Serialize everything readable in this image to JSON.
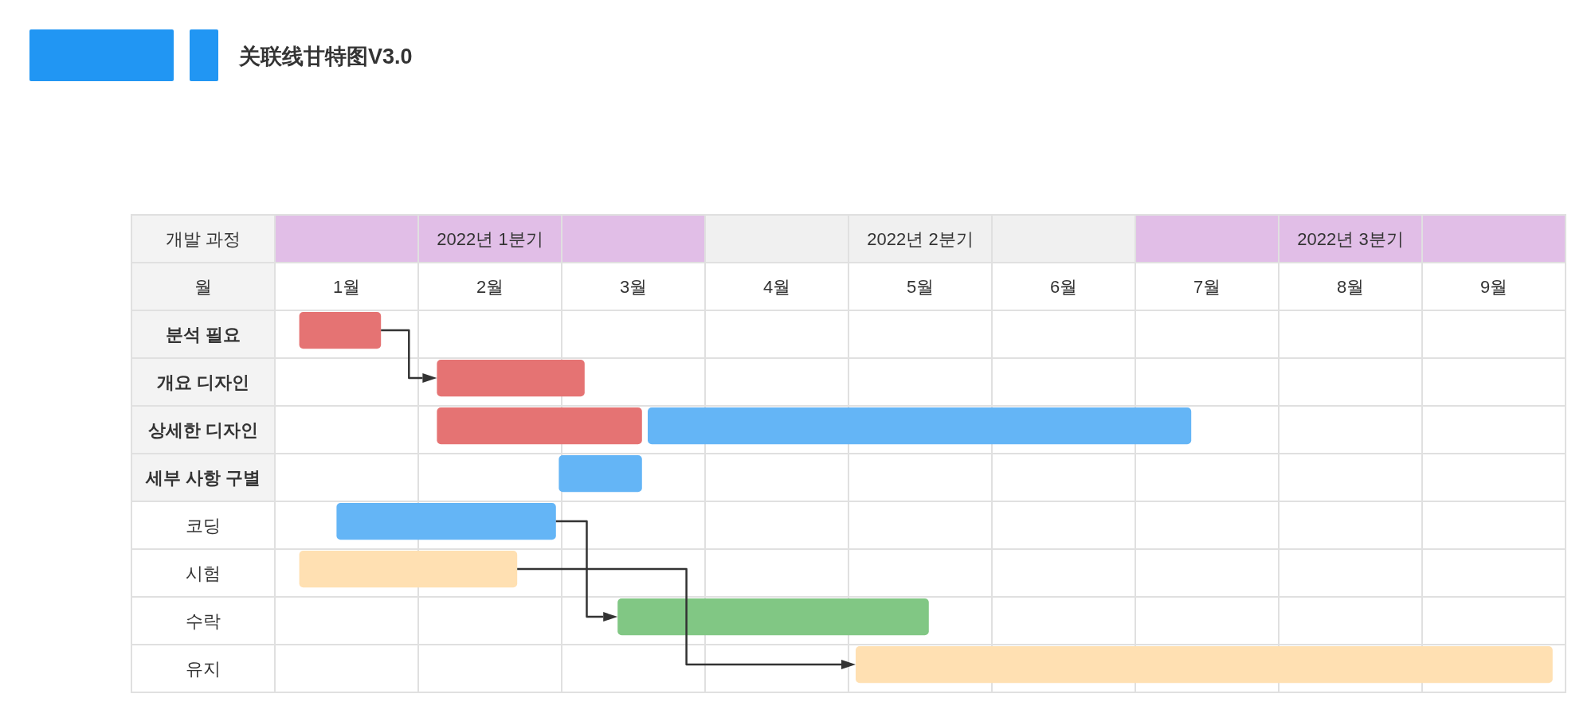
{
  "chart_data": {
    "type": "bar",
    "orientation": "horizontal",
    "title": "关联线甘特图V3.0",
    "xlabel": "월",
    "ylabel": "개발 과정",
    "categories": [
      "분석 필요",
      "개요 디자인",
      "상세한 디자인",
      "세부 사항 구별",
      "코딩",
      "시험",
      "수락",
      "유지"
    ],
    "series": [
      {
        "colors": [
          "#e57373",
          "#e57373",
          "#e57373",
          "#64b5f6",
          "#64b5f6",
          "#ffe0b2",
          "#81c784",
          "#ffe0b2"
        ],
        "base": [
          0.17,
          1.13,
          1.13,
          1.98,
          0.43,
          0.17,
          2.39,
          4.05
        ],
        "values": [
          0.57,
          1.03,
          1.43,
          0.58,
          1.53,
          1.52,
          2.17,
          4.86
        ]
      },
      {
        "colors": [
          null,
          null,
          "#64b5f6",
          null,
          null,
          null,
          null,
          null
        ],
        "base": [
          null,
          null,
          2.6,
          null,
          null,
          null,
          null,
          null
        ],
        "values": [
          null,
          null,
          3.79,
          null,
          null,
          null,
          null,
          null
        ]
      }
    ],
    "xlim": [
      0,
      9
    ],
    "xticks": [
      {
        "value": 0,
        "label": null
      },
      {
        "value": 0.5,
        "label": "1월"
      },
      {
        "value": 1,
        "label": null
      },
      {
        "value": 1.5,
        "label": "2월"
      },
      {
        "value": 2,
        "label": null
      },
      {
        "value": 2.5,
        "label": "3월"
      },
      {
        "value": 3,
        "label": null
      },
      {
        "value": 3.5,
        "label": "4월"
      },
      {
        "value": 4,
        "label": null
      },
      {
        "value": 4.5,
        "label": "5월"
      },
      {
        "value": 5,
        "label": null
      },
      {
        "value": 5.5,
        "label": "6월"
      },
      {
        "value": 6,
        "label": null
      },
      {
        "value": 6.5,
        "label": "7월"
      },
      {
        "value": 7,
        "label": null
      },
      {
        "value": 7.5,
        "label": "8월"
      },
      {
        "value": 8,
        "label": null
      },
      {
        "value": 8.5,
        "label": "9월"
      },
      {
        "value": 9,
        "label": null
      }
    ],
    "annotations": [
      "2022년 1분기",
      "2022년 2분기",
      "2022년 3분기"
    ],
    "grid": true
  }
}
